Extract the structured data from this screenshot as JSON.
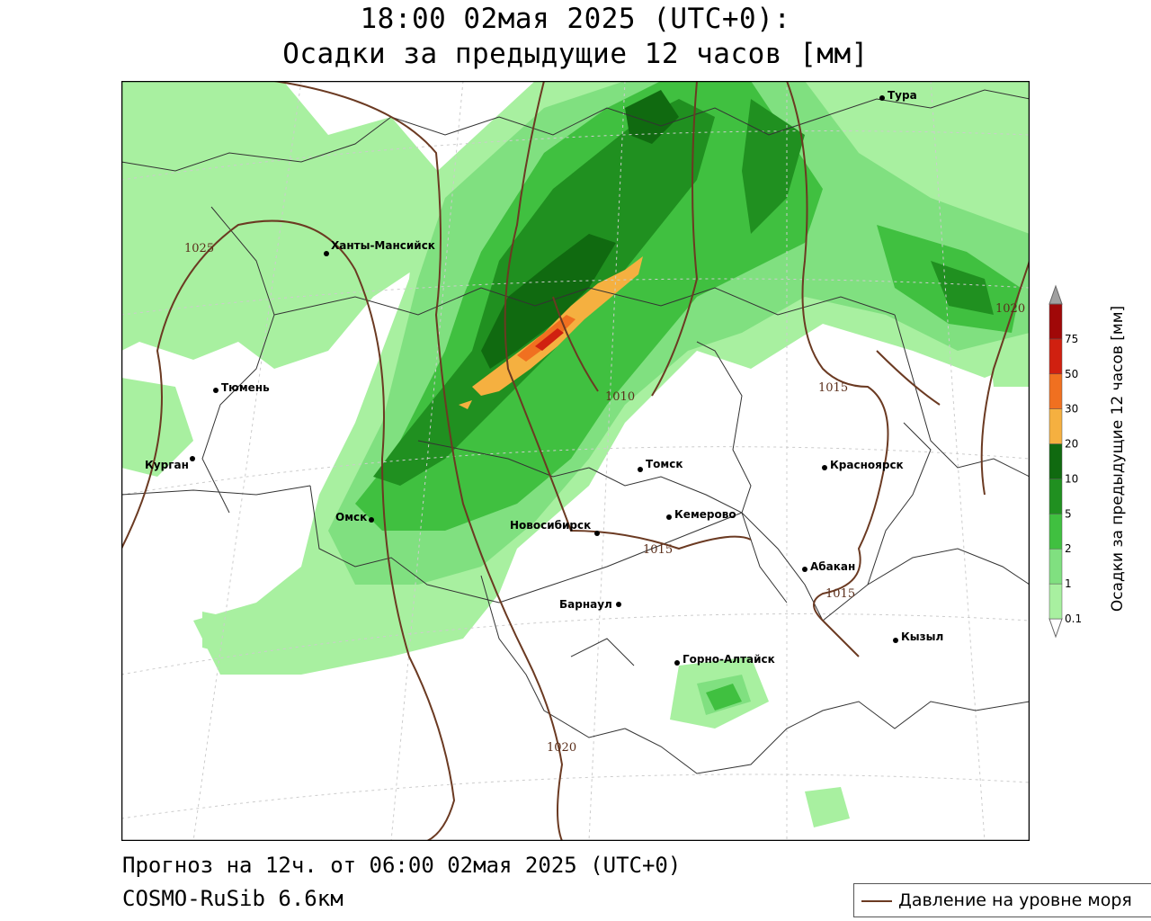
{
  "header": {
    "line1": "18:00 02мая 2025 (UTC+0):",
    "line2": "Осадки за предыдущие 12 часов [мм]"
  },
  "footer": {
    "forecast": "Прогноз на 12ч. от 06:00 02мая 2025 (UTC+0)",
    "model": "COSMO-RuSib 6.6км"
  },
  "legend": {
    "pressure_label": "Давление на уровне моря",
    "pressure_color": "#6b3a22"
  },
  "colorbar": {
    "title": "Осадки за предыдущие 12 часов [мм]",
    "levels": [
      "0.1",
      "1",
      "2",
      "5",
      "10",
      "20",
      "30",
      "50",
      "75"
    ],
    "colors": [
      "#a8f0a0",
      "#80e080",
      "#40c040",
      "#209020",
      "#106a10",
      "#f5b040",
      "#f07020",
      "#d02010",
      "#a00808",
      "#a0a0a0"
    ]
  },
  "cities": [
    {
      "name": "Тура"
    },
    {
      "name": "Ханты-Мансийск"
    },
    {
      "name": "Тюмень"
    },
    {
      "name": "Курган"
    },
    {
      "name": "Омск"
    },
    {
      "name": "Томск"
    },
    {
      "name": "Красноярск"
    },
    {
      "name": "Кемерово"
    },
    {
      "name": "Новосибирск"
    },
    {
      "name": "Абакан"
    },
    {
      "name": "Барнаул"
    },
    {
      "name": "Кызыл"
    },
    {
      "name": "Горно-Алтайск"
    }
  ],
  "isobars": [
    "1025",
    "1010",
    "1015",
    "1020",
    "1015",
    "1015",
    "1020"
  ]
}
